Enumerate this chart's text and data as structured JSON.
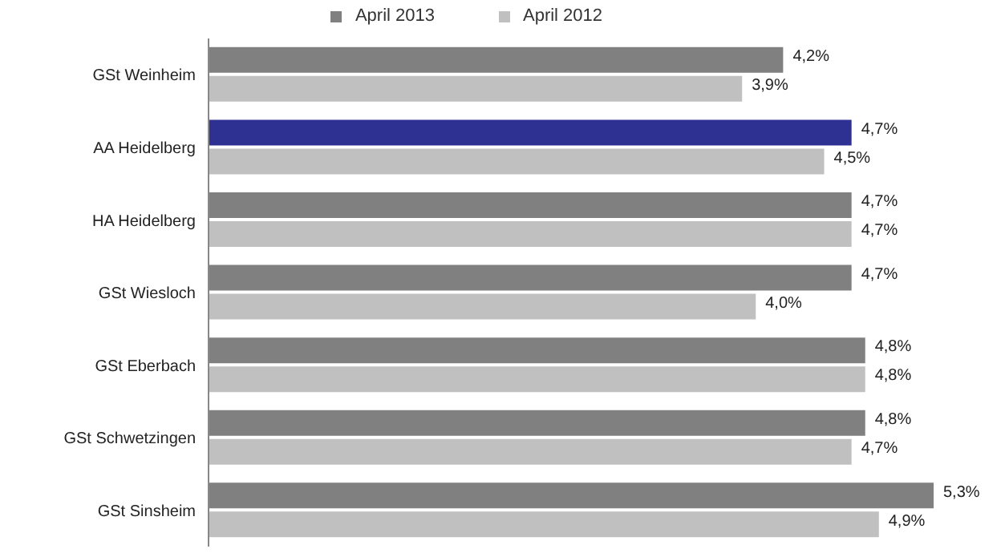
{
  "chart_data": {
    "type": "bar",
    "orientation": "horizontal",
    "categories": [
      "GSt Weinheim",
      "AA Heidelberg",
      "HA Heidelberg",
      "GSt Wiesloch",
      "GSt Eberbach",
      "GSt Schwetzingen",
      "GSt Sinsheim"
    ],
    "tick_labels": "y",
    "legend": "top",
    "grid": false,
    "series": [
      {
        "name": "April 2013",
        "color": "#808080",
        "colors": [
          "#808080",
          "#2e3192",
          "#808080",
          "#808080",
          "#808080",
          "#808080",
          "#808080"
        ],
        "values": [
          4.2,
          4.7,
          4.7,
          4.7,
          4.8,
          4.8,
          5.3
        ],
        "value_labels": [
          "4,2%",
          "4,7%",
          "4,7%",
          "4,7%",
          "4,8%",
          "4,8%",
          "5,3%"
        ]
      },
      {
        "name": "April 2012",
        "color": "#c0c0c0",
        "values": [
          3.9,
          4.5,
          4.7,
          4.0,
          4.8,
          4.7,
          4.9
        ],
        "value_labels": [
          "3,9%",
          "4,5%",
          "4,7%",
          "4,0%",
          "4,8%",
          "4,7%",
          "4,9%"
        ]
      }
    ]
  }
}
